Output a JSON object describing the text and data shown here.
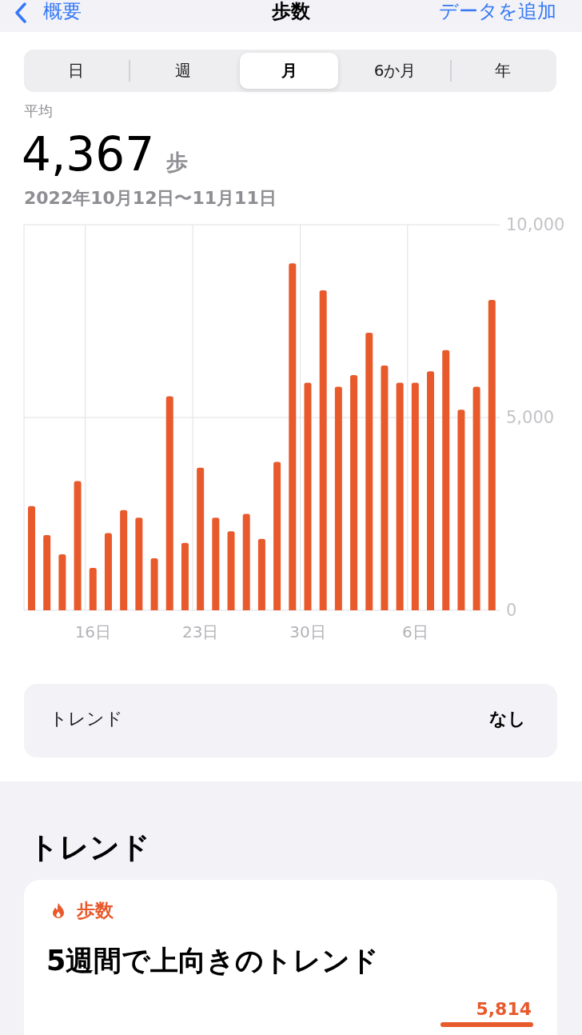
{
  "chart_data": {
    "type": "bar",
    "title": "歩数",
    "annotations": [
      "概要",
      "データを追加",
      "日",
      "週",
      "月",
      "6か月",
      "年",
      "平均",
      "4,367",
      "歩",
      "2022年10月12日〜11月11日",
      "トレンド",
      "なし",
      "トレンド",
      "歩数",
      "5週間で上向きのトレンド",
      "5,814"
    ],
    "categories": [
      null,
      null,
      null,
      null,
      "16日",
      null,
      null,
      null,
      null,
      null,
      null,
      "23日",
      null,
      null,
      null,
      null,
      null,
      null,
      "30日",
      null,
      null,
      null,
      null,
      null,
      null,
      "6日",
      null,
      null,
      null,
      null,
      null
    ],
    "values": [
      2700,
      1950,
      1450,
      3350,
      1100,
      2000,
      2600,
      2400,
      1350,
      5550,
      1750,
      3700,
      2400,
      2050,
      2500,
      1850,
      3850,
      9000,
      5900,
      8300,
      5800,
      6100,
      7200,
      6350,
      5900,
      5900,
      6200,
      6750,
      5200,
      5800,
      8050
    ],
    "color": "#e8592b",
    "ylim": [
      0,
      10000
    ],
    "yticks": [
      0,
      {
        "value": 5000,
        "label": "5,000"
      },
      {
        "value": 10000,
        "label": "10,000"
      }
    ],
    "grid": true
  }
}
